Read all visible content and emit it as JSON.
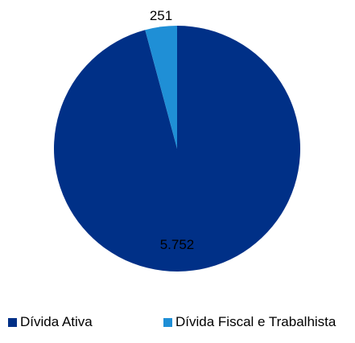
{
  "chart_data": {
    "type": "pie",
    "title": "",
    "legend_position": "bottom",
    "slices": [
      {
        "name": "Dívida Ativa",
        "value": 5752,
        "label": "5.752",
        "color": "#003087"
      },
      {
        "name": "Dívida Fiscal e Trabalhista",
        "value": 251,
        "label": "251",
        "color": "#1F8FD6"
      }
    ]
  }
}
